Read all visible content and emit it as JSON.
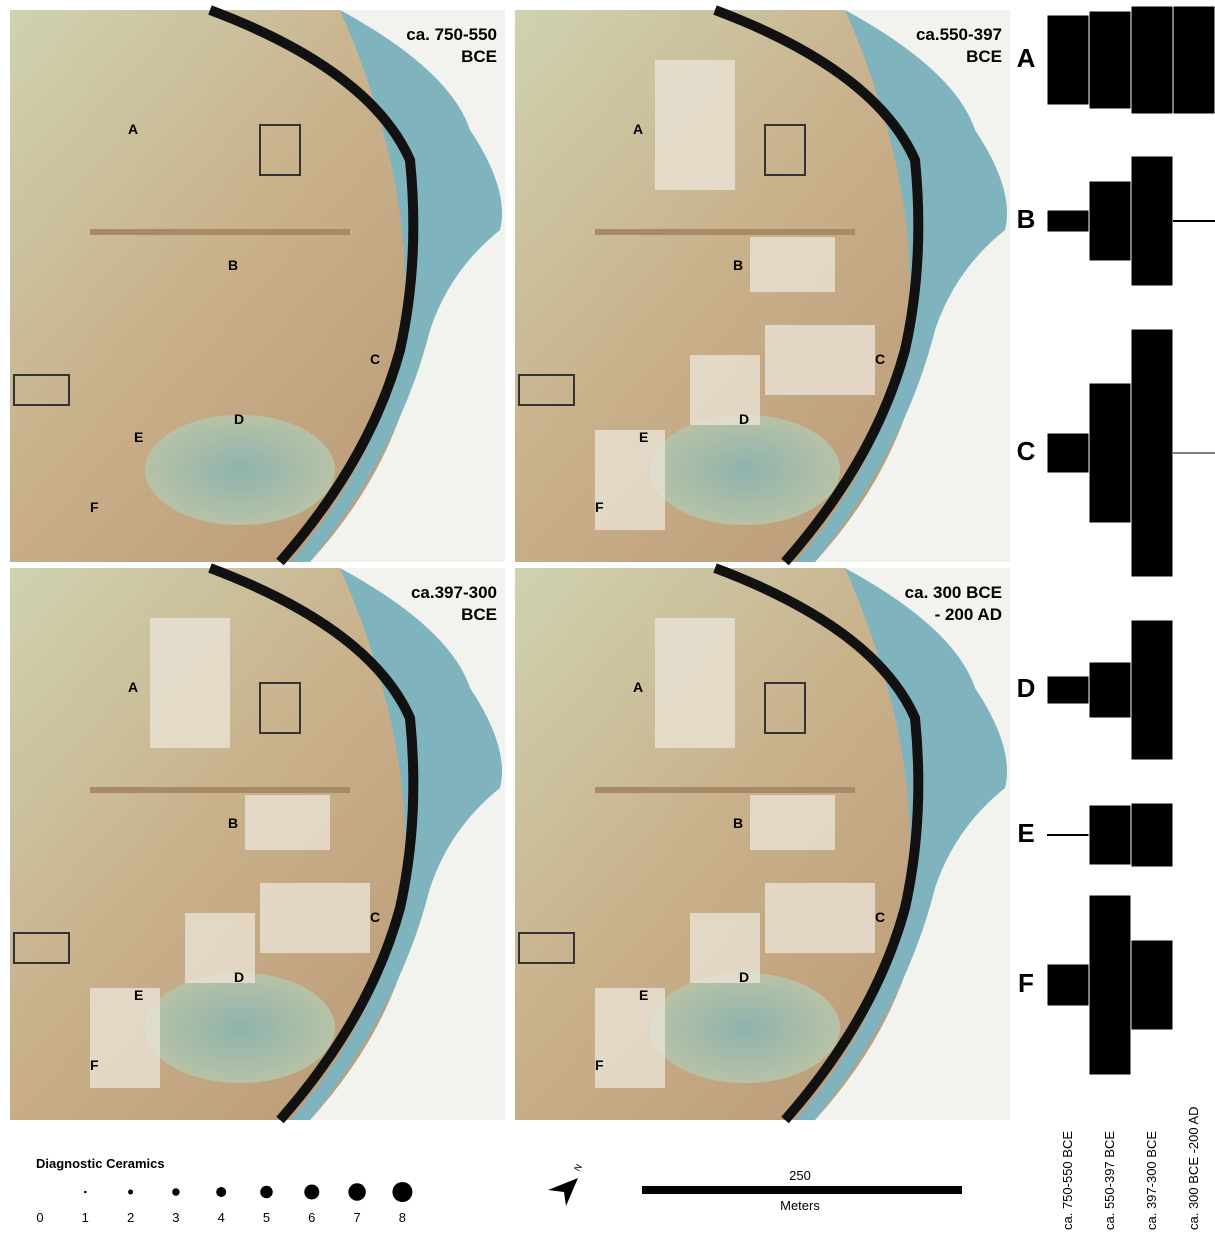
{
  "panels": [
    {
      "title": [
        "ca. 750-550",
        "BCE"
      ]
    },
    {
      "title": [
        "ca.550-397",
        "BCE"
      ]
    },
    {
      "title": [
        "ca.397-300",
        "BCE"
      ]
    },
    {
      "title": [
        "ca. 300 BCE",
        "- 200 AD"
      ]
    }
  ],
  "zones": [
    "A",
    "B",
    "C",
    "D",
    "E",
    "F"
  ],
  "chart_data": {
    "type": "battleship",
    "categories": [
      "A",
      "B",
      "C",
      "D",
      "E",
      "F"
    ],
    "series": [
      {
        "name": "ca. 750-550 BCE",
        "values": [
          90,
          22,
          40,
          28,
          1,
          42
        ]
      },
      {
        "name": "ca. 550-397 BCE",
        "values": [
          98,
          80,
          140,
          56,
          60,
          180
        ]
      },
      {
        "name": "ca. 397-300 BCE",
        "values": [
          108,
          130,
          248,
          140,
          64,
          90
        ]
      },
      {
        "name": "ca. 300 BCE -200 AD",
        "values": [
          108,
          1,
          1,
          0,
          0,
          0
        ]
      }
    ],
    "color": "#000000"
  },
  "legend": {
    "title": "Diagnostic Ceramics",
    "sizes": [
      0,
      1,
      2,
      3,
      4,
      5,
      6,
      7,
      8
    ]
  },
  "north": "N",
  "scale": {
    "distance": "250",
    "unit": "Meters"
  }
}
